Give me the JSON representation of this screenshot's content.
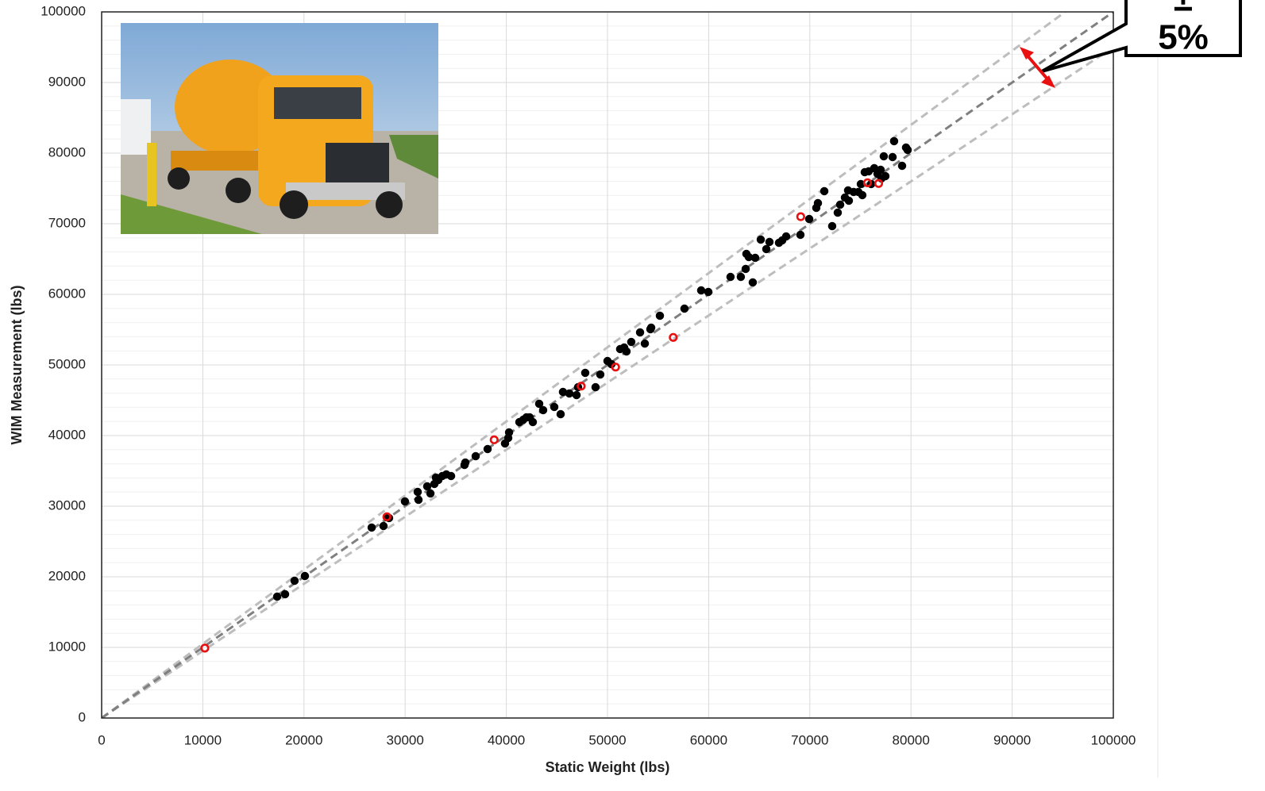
{
  "chart_data": {
    "type": "scatter",
    "x_label": "Static Weight (lbs)",
    "y_label": "WIM Measurement (lbs)",
    "annotation": [
      "±",
      "5%"
    ],
    "xlim": [
      0,
      100000
    ],
    "ylim": [
      0,
      100000
    ],
    "xticks": [
      0,
      10000,
      20000,
      30000,
      40000,
      50000,
      60000,
      70000,
      80000,
      90000,
      100000
    ],
    "yticks": [
      0,
      10000,
      20000,
      30000,
      40000,
      50000,
      60000,
      70000,
      80000,
      90000,
      100000
    ],
    "grid": true,
    "y_minor_per_major": 5,
    "reference_lines": [
      {
        "slope": 1.05,
        "color": "#bdbdbd"
      },
      {
        "slope": 0.95,
        "color": "#bdbdbd"
      },
      {
        "slope": 1,
        "color": "#7f7f7f"
      }
    ],
    "series": [
      {
        "color": "#000000",
        "marker": "filled",
        "x": [
          17350,
          18130,
          19070,
          20090,
          26690,
          27860,
          28180,
          28410,
          29980,
          31240,
          31320,
          32180,
          32500,
          32890,
          33040,
          33280,
          33670,
          34070,
          34540,
          35870,
          35950,
          36970,
          38150,
          39870,
          40190,
          40270,
          41290,
          41680,
          41990,
          42310,
          42620,
          43250,
          43640,
          44740,
          45370,
          45600,
          46230,
          46940,
          47090,
          47800,
          48820,
          49290,
          50000,
          50390,
          51250,
          51650,
          51880,
          52350,
          53220,
          53690,
          54240,
          54320,
          55180,
          57610,
          59260,
          59970,
          62160,
          63180,
          63660,
          63730,
          63970,
          64360,
          64600,
          65150,
          65700,
          66010,
          66950,
          67270,
          67660,
          69070,
          69940,
          70640,
          70800,
          71430,
          72210,
          72760,
          73000,
          73470,
          73780,
          73860,
          74330,
          74800,
          75040,
          75190,
          75430,
          75820,
          76060,
          76370,
          76690,
          77000,
          77080,
          77310,
          77470,
          78180,
          78330,
          79120,
          79510,
          79670
        ],
        "values": [
          17190,
          17530,
          19440,
          20110,
          26970,
          27190,
          28430,
          28320,
          30670,
          32020,
          30900,
          32810,
          31800,
          33150,
          34050,
          33710,
          34270,
          34500,
          34270,
          35840,
          36180,
          37080,
          38090,
          38880,
          39660,
          40450,
          41910,
          42250,
          42580,
          42580,
          41910,
          44500,
          43600,
          44050,
          43030,
          46180,
          45960,
          45730,
          46850,
          48880,
          46850,
          48650,
          50560,
          50110,
          52250,
          52470,
          51910,
          53260,
          54610,
          53030,
          55060,
          55280,
          56970,
          57980,
          60560,
          60340,
          62470,
          62470,
          63600,
          65730,
          65280,
          61690,
          65170,
          67750,
          66410,
          67420,
          67300,
          67640,
          68200,
          68430,
          70670,
          72250,
          72920,
          74610,
          69660,
          71570,
          72700,
          73710,
          74720,
          73260,
          74500,
          74500,
          75620,
          74050,
          77300,
          77420,
          75620,
          77870,
          77080,
          77640,
          76410,
          79550,
          76740,
          79440,
          81690,
          78200,
          80790,
          80450
        ]
      },
      {
        "color": "#e81010",
        "marker": "open",
        "x": [
          10200,
          28200,
          38800,
          47400,
          50800,
          56500,
          69100,
          75700,
          76800
        ],
        "values": [
          9900,
          28500,
          39400,
          47000,
          49700,
          53900,
          71000,
          75800,
          75700
        ]
      }
    ]
  }
}
